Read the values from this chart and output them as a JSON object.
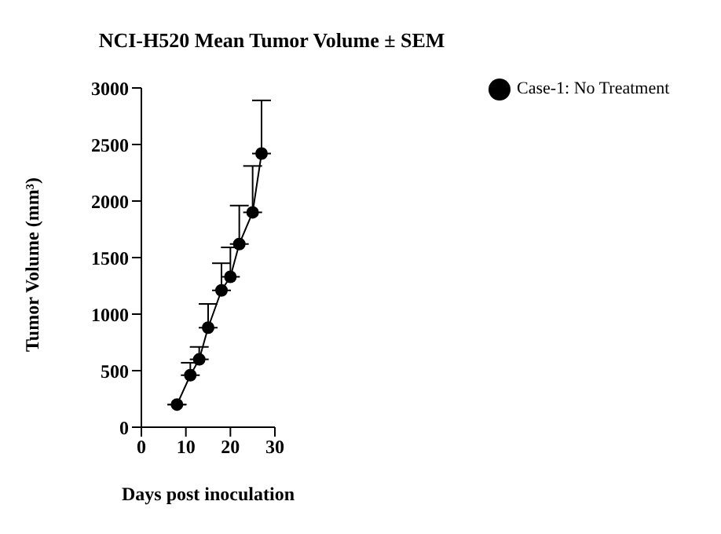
{
  "chart_data": {
    "type": "line",
    "title": "NCI-H520 Mean Tumor Volume ± SEM",
    "xlabel": "Days post inoculation",
    "ylabel": "Tumor Volume (mm³)",
    "x": [
      8,
      11,
      13,
      15,
      18,
      20,
      22,
      25,
      27
    ],
    "series": [
      {
        "name": "Case-1: No Treatment",
        "color": "#000000",
        "values": [
          200,
          460,
          600,
          880,
          1210,
          1330,
          1620,
          1900,
          2420
        ],
        "errors": [
          null,
          [
            460,
            570
          ],
          [
            600,
            710
          ],
          [
            880,
            1090
          ],
          [
            1210,
            1450
          ],
          [
            1330,
            1590
          ],
          [
            1620,
            1960
          ],
          [
            1900,
            2310
          ],
          [
            2420,
            2890
          ]
        ]
      }
    ],
    "xlim": [
      0,
      30
    ],
    "xticks": [
      0,
      10,
      20,
      30
    ],
    "ylim": [
      0,
      3000
    ],
    "yticks": [
      0,
      500,
      1000,
      1500,
      2000,
      2500,
      3000
    ],
    "grid": false,
    "legend": "top right",
    "marker": "circle",
    "line_style": "solid"
  }
}
